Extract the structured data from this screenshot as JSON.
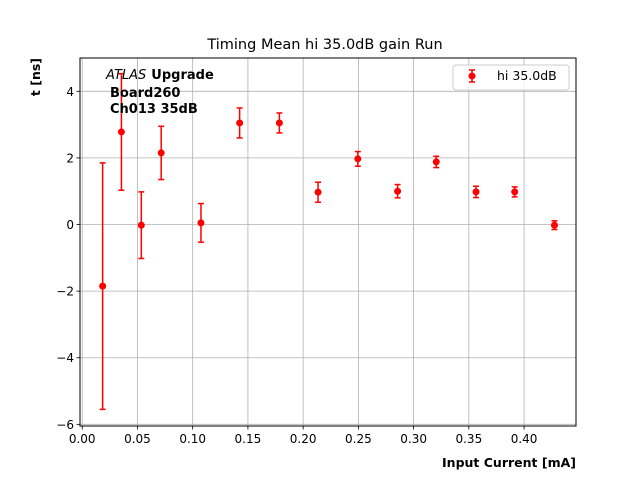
{
  "chart_data": {
    "type": "scatter",
    "title": "Timing Mean hi 35.0dB gain Run",
    "xlabel": "Input Current [mA]",
    "ylabel": "t [ns]",
    "xlim": [
      -0.002,
      0.447
    ],
    "ylim": [
      -6.05,
      5.0
    ],
    "x_ticks": [
      0.0,
      0.05,
      0.1,
      0.15,
      0.2,
      0.25,
      0.3,
      0.35,
      0.4
    ],
    "x_tick_labels": [
      "0.00",
      "0.05",
      "0.10",
      "0.15",
      "0.20",
      "0.25",
      "0.30",
      "0.35",
      "0.40"
    ],
    "y_ticks": [
      -6,
      -4,
      -2,
      0,
      2,
      4
    ],
    "y_tick_labels": [
      "−6",
      "−4",
      "−2",
      "0",
      "2",
      "4"
    ],
    "grid": true,
    "legend_position": "top-right",
    "annotation": {
      "atlas_italic": "ATLAS",
      "atlas_bold": "Upgrade",
      "line2": "Board260",
      "line3": "Ch013 35dB"
    },
    "series": [
      {
        "name": "hi 35.0dB",
        "color": "#ff0000",
        "marker": "circle",
        "x": [
          0.0185,
          0.0355,
          0.0535,
          0.0715,
          0.1075,
          0.1425,
          0.1785,
          0.2135,
          0.2495,
          0.2855,
          0.3205,
          0.3565,
          0.3915,
          0.4275
        ],
        "y": [
          -1.85,
          2.78,
          -0.02,
          2.15,
          0.05,
          3.05,
          3.05,
          0.97,
          1.97,
          1.0,
          1.88,
          0.98,
          0.98,
          -0.02
        ],
        "yerr": [
          3.7,
          1.75,
          1.0,
          0.8,
          0.58,
          0.45,
          0.3,
          0.3,
          0.22,
          0.2,
          0.17,
          0.17,
          0.15,
          0.13
        ]
      }
    ]
  }
}
